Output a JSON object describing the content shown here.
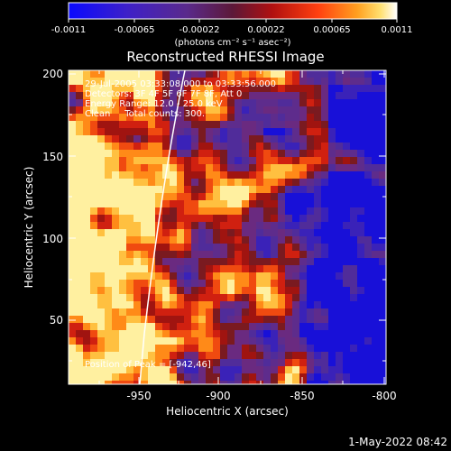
{
  "colorbar": {
    "tick_labels": [
      "-0.0011",
      "-0.00065",
      "-0.00022",
      "0.00022",
      "0.00065",
      "0.0011"
    ],
    "unit_label": "(photons cm⁻² s⁻¹ asec⁻²)",
    "range": [
      -0.0011,
      0.0011
    ]
  },
  "plot": {
    "title": "Reconstructed RHESSI Image",
    "xlabel": "Heliocentric X (arcsec)",
    "ylabel": "Heliocentric Y (arcsec)",
    "x_ticks": [
      "-950",
      "-900",
      "-850",
      "-800"
    ],
    "y_ticks": [
      "50",
      "100",
      "150",
      "200"
    ],
    "xlim": [
      -990,
      -800
    ],
    "ylim": [
      10,
      200
    ]
  },
  "annotations": {
    "time_range": "29-Jul-2005 03:33:08.000 to 03:33:56.000",
    "detectors": "Detectors: 3F 4F 5F 6F 7F 8F, Att 0",
    "energy_range": "Energy Range: 12.0 - 25.0 keV",
    "method": "Clean     Total counts: 300.",
    "peak": "Position of Peak = [-942,46]"
  },
  "footer": {
    "timestamp": "1-May-2022 08:42"
  },
  "colors": {
    "background": "#000000",
    "text": "#ffffff",
    "limb": "#ffffff",
    "colormap": [
      "#1010ff",
      "#3a20c0",
      "#6a2c9a",
      "#5a2d8a",
      "#8a1010",
      "#d01810",
      "#ff5010",
      "#ff9a20",
      "#ffe060",
      "#ffffff"
    ]
  }
}
